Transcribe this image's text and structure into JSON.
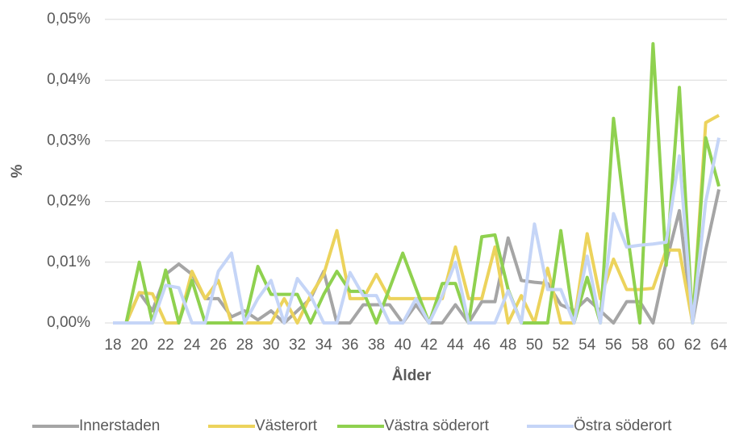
{
  "chart_data": {
    "type": "line",
    "x_label": "Ålder",
    "y_label": "%",
    "categories": [
      18,
      null,
      20,
      null,
      22,
      null,
      24,
      null,
      26,
      null,
      28,
      null,
      30,
      null,
      32,
      null,
      34,
      null,
      36,
      null,
      38,
      null,
      40,
      null,
      42,
      null,
      44,
      null,
      46,
      null,
      48,
      null,
      50,
      null,
      52,
      null,
      54,
      null,
      56,
      null,
      58,
      null,
      60,
      null,
      62,
      null,
      64
    ],
    "ylim": [
      0,
      0.05
    ],
    "yticks": [
      {
        "value": 0,
        "label": "0,00%"
      },
      {
        "value": 0.01,
        "label": "0,01%"
      },
      {
        "value": 0.02,
        "label": "0,02%"
      },
      {
        "value": 0.03,
        "label": "0,03%"
      },
      {
        "value": 0.04,
        "label": "0,04%"
      },
      {
        "value": 0.05,
        "label": "0,05%"
      }
    ],
    "grid": true,
    "legend": "bottom",
    "series": [
      {
        "name": "Innerstaden",
        "color": "#a5a5a5",
        "values": [
          0,
          0,
          0.005,
          0.002,
          0.008,
          0.0097,
          0.008,
          0.004,
          0.004,
          0.001,
          0.002,
          0.0005,
          0.002,
          0,
          0.002,
          0.004,
          0.0085,
          0,
          0,
          0.003,
          0.003,
          0.003,
          0,
          0.003,
          0,
          0,
          0.003,
          0,
          0.0035,
          0.0035,
          0.014,
          0.007,
          0.0067,
          0.0065,
          0.003,
          0.002,
          0.004,
          0.002,
          0,
          0.0035,
          0.0035,
          0,
          0.01,
          0.0185,
          0,
          0.012,
          0.022
        ]
      },
      {
        "name": "Västerort",
        "color": "#ecd35c",
        "values": [
          0,
          0,
          0.005,
          0.0048,
          0,
          0,
          0.0085,
          0.004,
          0.007,
          0,
          0,
          0,
          0,
          0.004,
          0,
          0.0045,
          0.008,
          0.0152,
          0.004,
          0.004,
          0.008,
          0.004,
          0.004,
          0.004,
          0.004,
          0.004,
          0.0125,
          0.004,
          0.004,
          0.0125,
          0,
          0.0045,
          0,
          0.009,
          0,
          0,
          0.0147,
          0.004,
          0.0105,
          0.0055,
          0.0055,
          0.0057,
          0.012,
          0.012,
          0,
          0.033,
          0.0342
        ]
      },
      {
        "name": "Västra söderort",
        "color": "#8fd14f",
        "values": [
          0,
          0,
          0.01,
          0,
          0.0087,
          0,
          0.007,
          0,
          0,
          0,
          0,
          0.0093,
          0.0047,
          0.0047,
          0.0047,
          0,
          0.0047,
          0.0085,
          0.0052,
          0.0052,
          0,
          0.0057,
          0.0115,
          0.0057,
          0,
          0.0065,
          0.0065,
          0,
          0.0142,
          0.0145,
          0.0055,
          0,
          0,
          0,
          0.0152,
          0,
          0.0075,
          0,
          0.0337,
          0.0155,
          0,
          0.046,
          0.0095,
          0.0388,
          0,
          0.0305,
          0.0225
        ]
      },
      {
        "name": "Östra söderort",
        "color": "#c5d5f7",
        "values": [
          0,
          0,
          0,
          0,
          0.0062,
          0.0058,
          0,
          0,
          0.0085,
          0.0115,
          0,
          0.004,
          0.007,
          0,
          0.0073,
          0.0045,
          0,
          0,
          0.0083,
          0.0045,
          0.0045,
          0,
          0,
          0.004,
          0,
          0.0045,
          0.01,
          0,
          0,
          0,
          0.0053,
          0,
          0.0163,
          0.0055,
          0.0055,
          0,
          0.011,
          0,
          0.018,
          0.0125,
          0.0128,
          0.013,
          0.0133,
          0.0275,
          0,
          0.02,
          0.0305
        ]
      }
    ]
  }
}
